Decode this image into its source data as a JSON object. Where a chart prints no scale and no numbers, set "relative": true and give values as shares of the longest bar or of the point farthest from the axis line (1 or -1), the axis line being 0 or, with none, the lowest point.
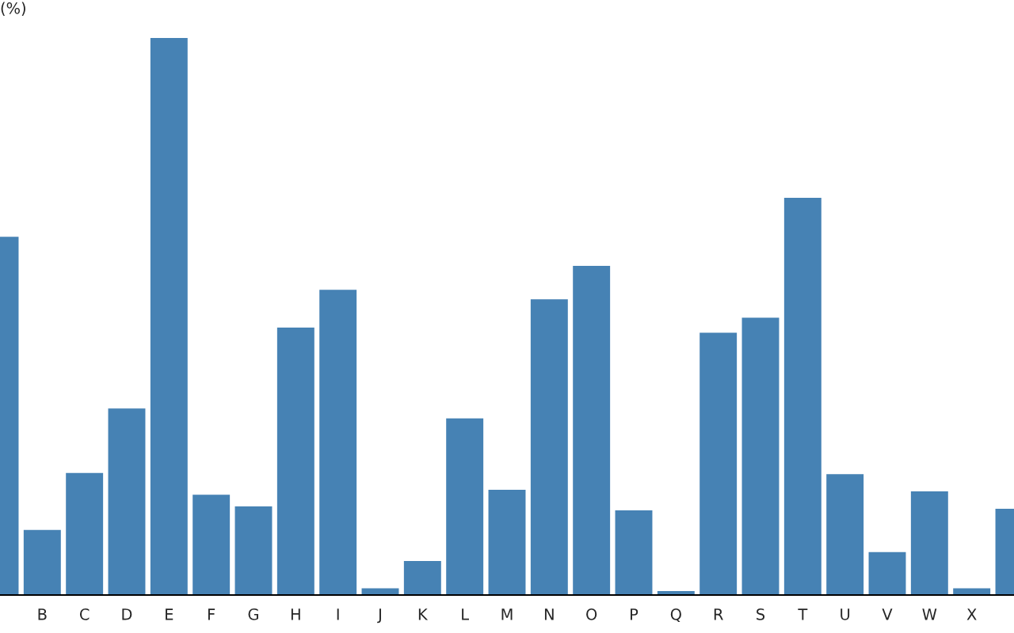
{
  "chart_data": {
    "type": "bar",
    "ylabel": "(%)",
    "relative": true,
    "categories": [
      null,
      "B",
      "C",
      "D",
      "E",
      "F",
      "G",
      "H",
      "I",
      "J",
      "K",
      "L",
      "M",
      "N",
      "O",
      "P",
      "Q",
      "R",
      "S",
      "T",
      "U",
      "V",
      "W",
      "X",
      null
    ],
    "values": [
      0.643,
      0.117,
      0.219,
      0.335,
      1.0,
      0.18,
      0.159,
      0.48,
      0.548,
      0.012,
      0.061,
      0.317,
      0.189,
      0.531,
      0.591,
      0.152,
      0.007,
      0.471,
      0.498,
      0.713,
      0.217,
      0.077,
      0.186,
      0.012,
      0.155
    ],
    "color": "#4682b4",
    "grid": false,
    "legend": false
  }
}
